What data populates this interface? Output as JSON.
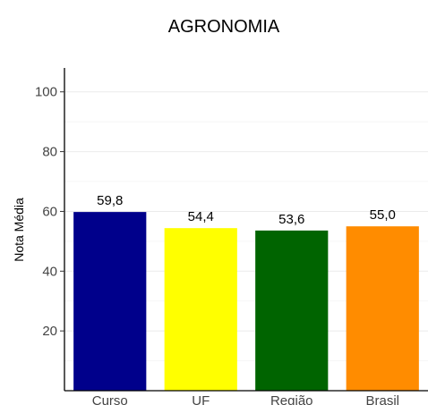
{
  "chart_data": {
    "type": "bar",
    "title": "AGRONOMIA",
    "xlabel": "",
    "ylabel": "Nota Média",
    "categories": [
      "Curso",
      "UF",
      "Região",
      "Brasil"
    ],
    "values": [
      59.8,
      54.4,
      53.6,
      55.0
    ],
    "value_labels": [
      "59,8",
      "54,4",
      "53,6",
      "55,0"
    ],
    "colors": [
      "#00008b",
      "#ffff00",
      "#006400",
      "#ff8c00"
    ],
    "ylim": [
      0,
      108
    ],
    "yticks": [
      20,
      40,
      60,
      80,
      100
    ],
    "ytick_labels": [
      "20",
      "40",
      "60",
      "80",
      "100"
    ],
    "grid": true,
    "legend": "none"
  }
}
